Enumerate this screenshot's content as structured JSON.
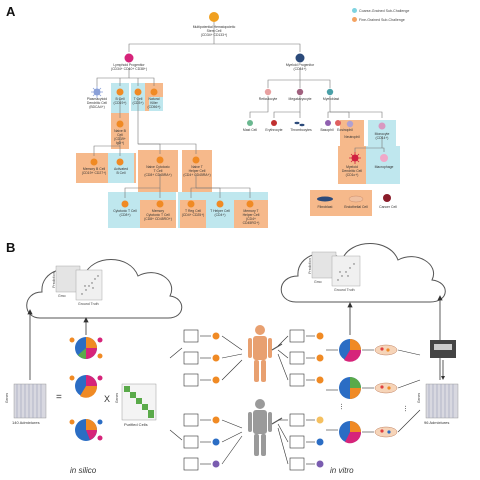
{
  "panel_a": {
    "letter": "A",
    "legend": {
      "coarse": "Coarse-Grained Sub-Challenge",
      "fine": "Fine-Grained Sub-Challenge",
      "coarse_color": "#7fd3e0",
      "fine_color": "#f4a261"
    },
    "nodes": {
      "stem": "Multipotential Hematopoietic\nStem Cell\n(CD34+ CD133+)",
      "lymphoid": "Lymphoid Progenitor\n(CD34+ CD10+ CD38+)",
      "myeloid": "Myeloid Progenitor\n(CD34+)",
      "pdc": "Plasmacytoid\nDendritic Cell\n(BDCA4+)",
      "bcell": "B Cell\n(CD19+)",
      "tcell": "T Cell\n(CD3+)",
      "nk": "Natural\nKiller\n(CD56+)",
      "naive_b": "Naive B\nCell\n(CD19+\nIgD+)",
      "memory_b": "Memory B Cell\n(CD19+ CD27+)",
      "activated_b": "Activated\nB Cell",
      "naive_cyto": "Naive Cytotoxic\nT Cell\n(CD8+ CD45RA+)",
      "naive_helper": "Naive T\nHelper Cell\n(CD4+ CD45RA+)",
      "cyto_t": "Cytotoxic T Cell\n(CD8+)",
      "memory_cyto": "Memory\nCytotoxic T Cell\n(CD8+ CD45RO+)",
      "treg": "T Reg Cell\n(CD4+ CD25+)",
      "helper_t": "T Helper Cell\n(CD4+)",
      "memory_helper": "Memory T\nHelper Cell\n(CD4+\nCD45RO+)",
      "reticulocyte": "Reticulocyte",
      "megakaryocyte": "Megakaryocyte",
      "myeloblast": "Myeloblast",
      "mast": "Mast Cell",
      "erythrocyte": "Erythrocyte",
      "thrombocytes": "Thrombocytes",
      "basophil": "Basophil",
      "eosinophil": "Eosinophil",
      "neutrophil": "Neutrophil",
      "monocyte": "Monocyte\n(CD14+)",
      "myeloid_dc": "Myeloid\nDendritic Cell\n(CD1c+)",
      "macrophage": "Macrophage",
      "fibroblast": "Fibroblast",
      "endothelial": "Endothelial Cell",
      "cancer": "Cancer Cell"
    }
  },
  "panel_b": {
    "letter": "B",
    "prediction_label": "Prediction",
    "ground_truth_label": "Ground Truth",
    "gmo_label": "Gmo",
    "genes_label": "Genes",
    "left_admixtures": "140 Admixtures",
    "right_admixtures": "96 Admixtures",
    "purified_cells": "Purified Cells",
    "equals": "=",
    "times": "X",
    "in_silico": "in silico",
    "in_vitro": "in vitro",
    "ellipsis": "..."
  },
  "colors": {
    "orange": "#f08a24",
    "cyan_bg": "#bfe7ee",
    "orange_bg": "#f6b98b",
    "navy": "#2b4a7a",
    "magenta": "#d6247a"
  }
}
